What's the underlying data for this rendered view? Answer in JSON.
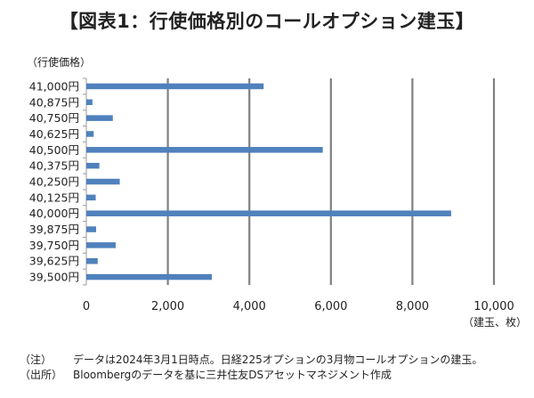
{
  "title": "【図表1：行使価格別のコールオプション建玉】",
  "chart_data": {
    "type": "bar",
    "orientation": "horizontal",
    "categories": [
      "41,000円",
      "40,875円",
      "40,750円",
      "40,625円",
      "40,500円",
      "40,375円",
      "40,250円",
      "40,125円",
      "40,000円",
      "39,875円",
      "39,750円",
      "39,625円",
      "39,500円"
    ],
    "values": [
      4350,
      150,
      650,
      180,
      5800,
      320,
      820,
      230,
      8950,
      240,
      720,
      280,
      3080
    ],
    "ylabel": "（行使価格）",
    "xlabel": "（建玉、枚）",
    "xlim": [
      0,
      10000
    ],
    "xticks": [
      "0",
      "2,000",
      "4,000",
      "6,000",
      "8,000",
      "10,000"
    ],
    "grid": "vertical",
    "bar_color": "#4F81BD",
    "grid_color": "#808080"
  },
  "notes": [
    {
      "key": "（注）",
      "text": "データは2024年3月1日時点。日経225オプションの3月物コールオプションの建玉。"
    },
    {
      "key": "（出所）",
      "text": "Bloombergのデータを基に三井住友DSアセットマネジメント作成"
    }
  ]
}
